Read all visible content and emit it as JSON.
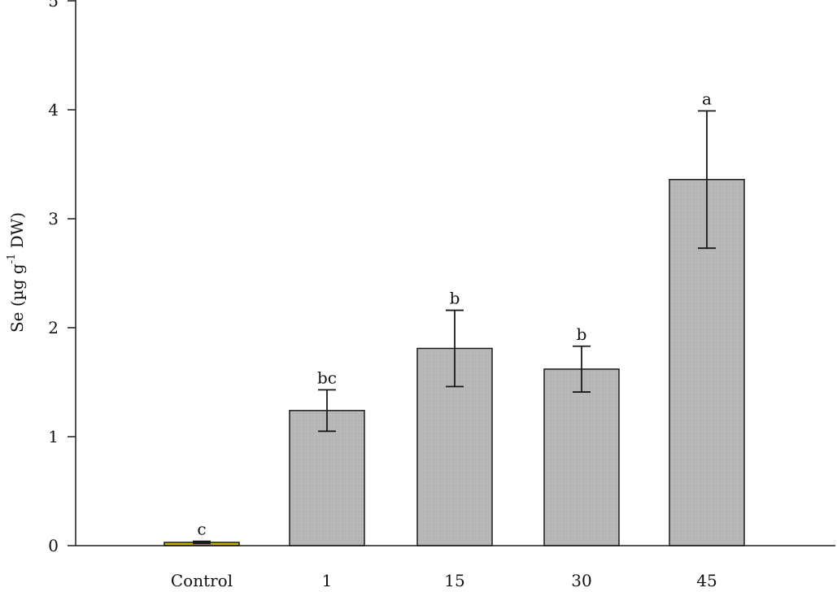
{
  "chart_data": {
    "type": "bar",
    "title": "",
    "xlabel": "",
    "ylabel": "Se (µg g",
    "ylabel_superscript": "-1",
    "ylabel_suffix": " DW)",
    "categories": [
      "Control",
      "1",
      "15",
      "30",
      "45"
    ],
    "values": [
      0.03,
      1.24,
      1.81,
      1.62,
      3.36
    ],
    "errors": [
      0.01,
      0.19,
      0.35,
      0.21,
      0.63
    ],
    "significance": [
      "c",
      "bc",
      "b",
      "b",
      "a"
    ],
    "ylim": [
      0,
      5
    ],
    "yticks": [
      0,
      1,
      2,
      3,
      4,
      5
    ],
    "grid": false,
    "colors": {
      "bar_fill": "#b9b9b9",
      "control_fill": "#c8b400",
      "axis": "#1a1a1a"
    }
  }
}
